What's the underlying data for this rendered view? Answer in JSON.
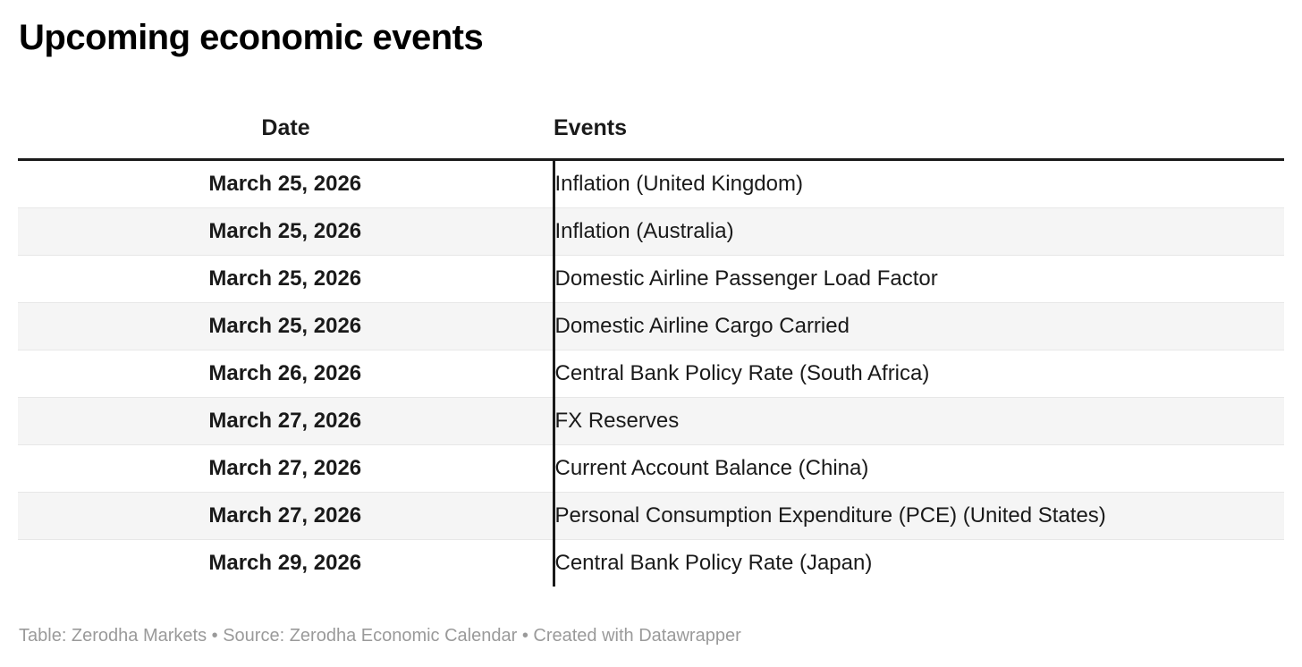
{
  "chart_data": {
    "type": "table",
    "title": "Upcoming economic events",
    "columns": [
      "Date",
      "Events"
    ],
    "rows": [
      [
        "March 25, 2026",
        "Inflation (United Kingdom)"
      ],
      [
        "March 25, 2026",
        "Inflation (Australia)"
      ],
      [
        "March 25, 2026",
        "Domestic Airline Passenger Load Factor"
      ],
      [
        "March 25, 2026",
        "Domestic Airline Cargo Carried"
      ],
      [
        "March 26, 2026",
        "Central Bank Policy Rate (South Africa)"
      ],
      [
        "March 27, 2026",
        "FX Reserves"
      ],
      [
        "March 27, 2026",
        "Current Account Balance (China)"
      ],
      [
        "March 27, 2026",
        "Personal Consumption Expenditure (PCE) (United States)"
      ],
      [
        "March 29, 2026",
        "Central Bank Policy Rate (Japan)"
      ]
    ],
    "footer": "Table: Zerodha Markets • Source: Zerodha Economic Calendar • Created with Datawrapper",
    "layout": {
      "striped_rows": true,
      "stripe_pattern": "even rows shaded",
      "header_rule": "thick black below header",
      "column_divider": "thick black between Date and Events",
      "date_alignment": "center-bold",
      "events_alignment": "left-regular",
      "table_bottom_border": false
    }
  },
  "colors": {
    "background": "#ffffff",
    "text": "#1a1a1a",
    "title_text": "#000000",
    "muted_text": "#9a9a9a",
    "stripe": "#f5f5f5",
    "row_border": "#e7e7e7",
    "rule": "#1a1a1a"
  }
}
